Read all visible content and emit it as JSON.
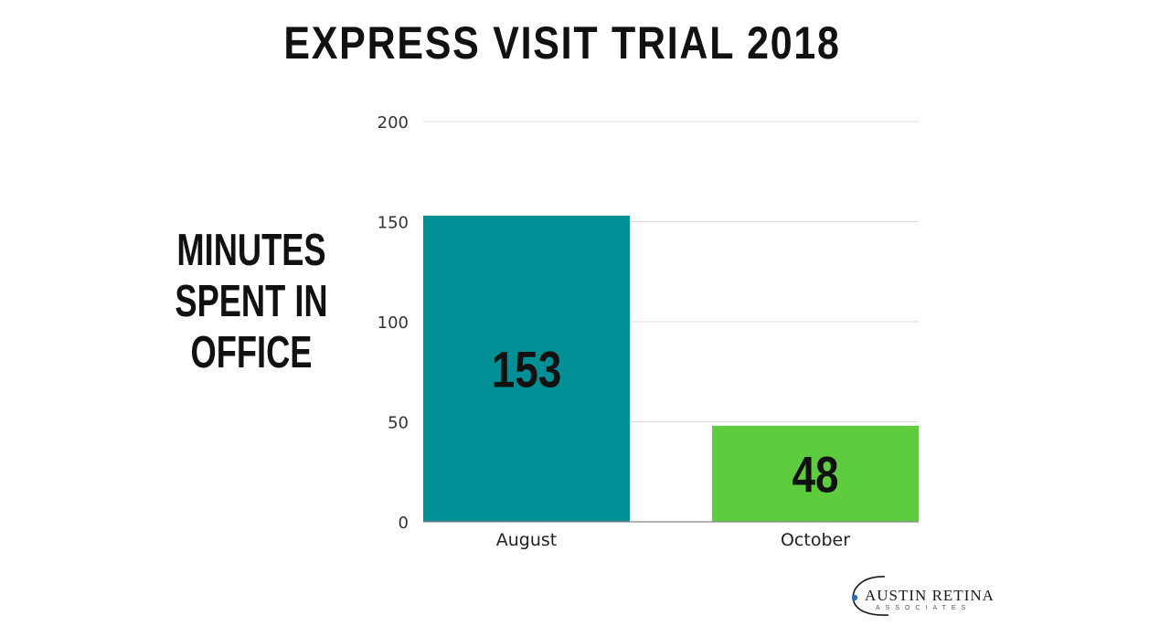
{
  "chart_data": {
    "type": "bar",
    "title": "EXPRESS VISIT TRIAL 2018",
    "ylabel_lines": [
      "MINUTES",
      "SPENT IN",
      "OFFICE"
    ],
    "xlabel": "",
    "categories": [
      "August",
      "October"
    ],
    "values": [
      153,
      48
    ],
    "data_labels": [
      "153",
      "48"
    ],
    "ylim": [
      0,
      200
    ],
    "yticks": [
      0,
      50,
      100,
      150,
      200
    ],
    "ytick_labels": [
      "0",
      "50",
      "100",
      "150",
      "200"
    ],
    "bar_colors": [
      "#008f94",
      "#5dcc3e"
    ],
    "grid": true,
    "legend": "none"
  },
  "logo": {
    "main": "AUSTIN RETINA",
    "sub": "ASSOCIATES"
  },
  "colors": {
    "gridline": "#dddddd",
    "axis": "#888888",
    "logo_dot": "#2f6db5"
  }
}
